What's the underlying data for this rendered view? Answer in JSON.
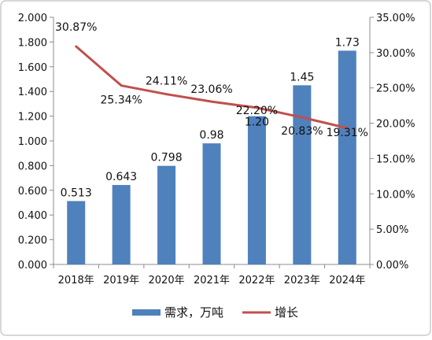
{
  "chart_data": {
    "type": "bar",
    "title": "",
    "categories": [
      "2018年",
      "2019年",
      "2020年",
      "2021年",
      "2022年",
      "2023年",
      "2024年"
    ],
    "series": [
      {
        "name": "需求，万吨",
        "chart_type": "bar",
        "axis": "left",
        "color": "#4F81BD",
        "values": [
          0.513,
          0.643,
          0.798,
          0.98,
          1.2,
          1.45,
          1.73
        ],
        "labels": [
          "0.513",
          "0.643",
          "0.798",
          "0.98",
          "1.20",
          "1.45",
          "1.73"
        ]
      },
      {
        "name": "增长",
        "chart_type": "line",
        "axis": "right",
        "color": "#C0504D",
        "values": [
          30.87,
          25.34,
          24.11,
          23.06,
          22.2,
          20.83,
          19.31
        ],
        "labels": [
          "30.87%",
          "25.34%",
          "24.11%",
          "23.06%",
          "22.20%",
          "20.83%",
          "19.31%"
        ]
      }
    ],
    "y_left": {
      "ylim": [
        0,
        2.0
      ],
      "ticks": [
        "0.000",
        "0.200",
        "0.400",
        "0.600",
        "0.800",
        "1.000",
        "1.200",
        "1.400",
        "1.600",
        "1.800",
        "2.000"
      ]
    },
    "y_right": {
      "ylim": [
        0,
        35
      ],
      "ticks": [
        "0.00%",
        "5.00%",
        "10.00%",
        "15.00%",
        "20.00%",
        "25.00%",
        "30.00%",
        "35.00%"
      ]
    },
    "grid": false,
    "legend": "bottom"
  }
}
